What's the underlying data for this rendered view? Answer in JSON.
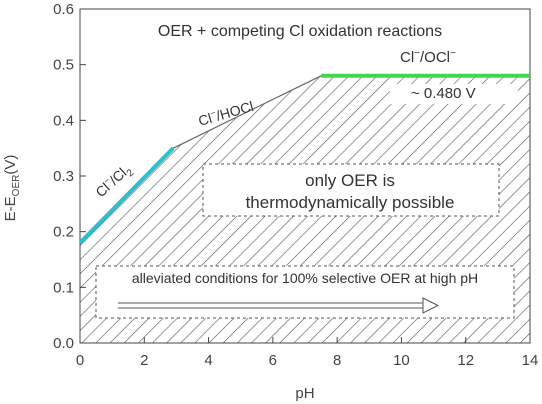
{
  "chart_data": {
    "type": "line",
    "xlabel": "pH",
    "ylabel_main": "E-E",
    "ylabel_sub": "OER",
    "ylabel_unit": "(V)",
    "xlim": [
      0,
      14
    ],
    "ylim": [
      0.0,
      0.6
    ],
    "x_ticks": [
      0,
      2,
      4,
      6,
      8,
      10,
      12,
      14
    ],
    "y_ticks": [
      0.0,
      0.1,
      0.2,
      0.3,
      0.4,
      0.5,
      0.6
    ],
    "x_tick_labels": [
      "0",
      "2",
      "4",
      "6",
      "8",
      "10",
      "12",
      "14"
    ],
    "y_tick_labels": [
      "0.0",
      "0.1",
      "0.2",
      "0.3",
      "0.4",
      "0.5",
      "0.6"
    ],
    "series": [
      {
        "name": "Cl-/Cl2",
        "color": "#2bbfd0",
        "x": [
          0,
          2.9
        ],
        "y": [
          0.18,
          0.35
        ]
      },
      {
        "name": "Cl-/HOCl",
        "color": "#666666",
        "x": [
          2.9,
          7.5
        ],
        "y": [
          0.35,
          0.48
        ]
      },
      {
        "name": "Cl-/OCl-",
        "color": "#44d64a",
        "x": [
          7.5,
          14
        ],
        "y": [
          0.48,
          0.48
        ]
      }
    ],
    "boundary": {
      "x": [
        0,
        2.9,
        7.5,
        14
      ],
      "y": [
        0.18,
        0.35,
        0.48,
        0.48
      ]
    },
    "annotations": {
      "top_region": "OER + competing Cl oxidation reactions",
      "only_oer_line1": "only OER is",
      "only_oer_line2": "thermodynamically possible",
      "selective": "alleviated conditions for 100% selective OER at high pH",
      "cl2_label": "Cl",
      "cl2_sup": "−",
      "cl2_mid": "/Cl",
      "cl2_sub": "2",
      "hocl_label": "Cl",
      "hocl_sup": "−",
      "hocl_rest": "/HOCl",
      "ocl_label": "Cl",
      "ocl_sup": "−",
      "ocl_rest": "/OCl",
      "ocl_sup2": "−",
      "value_label": "~ 0.480 V"
    }
  }
}
